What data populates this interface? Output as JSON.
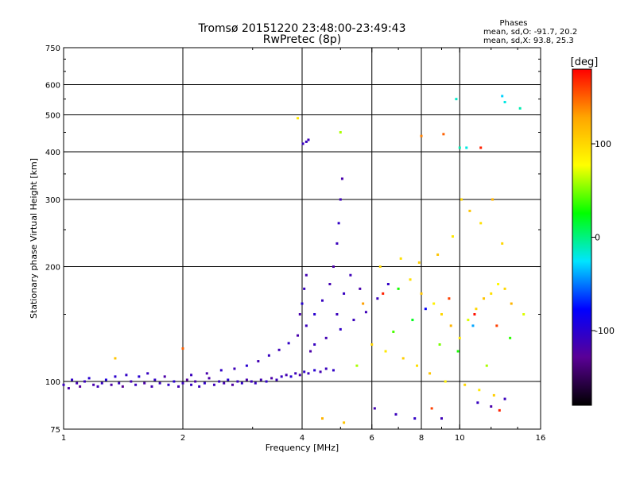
{
  "chart_data": {
    "type": "scatter",
    "title": "Tromsø 20151220 23:48:00-23:49:43",
    "subtitle": "RwPretec (8p)",
    "xlabel": "Frequency [MHz]",
    "ylabel": "Stationary phase Virtual Height [km]",
    "x_scale": "log",
    "y_scale": "log",
    "xlim": [
      1,
      16
    ],
    "ylim": [
      75,
      750
    ],
    "x_ticks": [
      1,
      2,
      4,
      6,
      8,
      10,
      16
    ],
    "y_ticks": [
      75,
      100,
      200,
      300,
      400,
      500,
      600,
      750
    ],
    "x_minor_ticks": [
      3,
      5,
      7,
      9,
      12,
      14
    ],
    "y_minor_ticks": [
      150,
      250,
      350,
      450,
      550,
      650,
      700
    ],
    "grid": true,
    "legend": {
      "title": "Phases",
      "lines": [
        "mean, sd,O: -91.7, 20.2",
        "mean, sd,X:  93.8, 25.3"
      ]
    },
    "colorbar": {
      "label": "[deg]",
      "range": [
        -180,
        180
      ],
      "ticks": [
        100,
        0,
        -100
      ],
      "colormap": [
        "#000000",
        "#5a0096",
        "#0000ff",
        "#00e5ff",
        "#00ff00",
        "#ffff00",
        "#ffa500",
        "#ff0000"
      ]
    },
    "series": [
      {
        "points": [
          [
            1.0,
            98,
            -110
          ],
          [
            1.03,
            96,
            -120
          ],
          [
            1.05,
            101,
            -105
          ],
          [
            1.08,
            99,
            -115
          ],
          [
            1.1,
            97,
            -125
          ],
          [
            1.13,
            100,
            -110
          ],
          [
            1.16,
            102,
            -100
          ],
          [
            1.19,
            98,
            -118
          ],
          [
            1.22,
            97,
            -112
          ],
          [
            1.25,
            99,
            -108
          ],
          [
            1.28,
            101,
            -95
          ],
          [
            1.32,
            98,
            -120
          ],
          [
            1.35,
            103,
            -102
          ],
          [
            1.38,
            99,
            -110
          ],
          [
            1.41,
            97,
            -130
          ],
          [
            1.44,
            104,
            -105
          ],
          [
            1.48,
            100,
            -115
          ],
          [
            1.52,
            98,
            -110
          ],
          [
            1.55,
            103,
            -100
          ],
          [
            1.6,
            99,
            -120
          ],
          [
            1.63,
            105,
            -108
          ],
          [
            1.67,
            97,
            -115
          ],
          [
            1.7,
            101,
            -105
          ],
          [
            1.75,
            99,
            -110
          ],
          [
            1.8,
            103,
            -120
          ],
          [
            1.84,
            98,
            -105
          ],
          [
            1.9,
            100,
            -100
          ],
          [
            1.95,
            97,
            -115
          ],
          [
            2.0,
            99,
            -110
          ],
          [
            2.05,
            101,
            -125
          ],
          [
            2.1,
            98,
            -108
          ],
          [
            2.15,
            100,
            -118
          ],
          [
            2.2,
            97,
            -110
          ],
          [
            2.27,
            99,
            -105
          ],
          [
            2.33,
            102,
            -120
          ],
          [
            2.4,
            98,
            -112
          ],
          [
            2.47,
            100,
            -108
          ],
          [
            2.54,
            99,
            -115
          ],
          [
            2.6,
            101,
            -100
          ],
          [
            2.67,
            98,
            -122
          ],
          [
            2.75,
            100,
            -110
          ],
          [
            2.82,
            99,
            -105
          ],
          [
            2.9,
            101,
            -118
          ],
          [
            2.98,
            100,
            -112
          ],
          [
            3.05,
            99,
            -108
          ],
          [
            3.15,
            101,
            -115
          ],
          [
            3.25,
            100,
            -104
          ],
          [
            3.35,
            102,
            -120
          ],
          [
            3.45,
            101,
            -110
          ],
          [
            3.55,
            103,
            -108
          ],
          [
            3.65,
            104,
            -115
          ],
          [
            3.75,
            103,
            -100
          ],
          [
            3.85,
            105,
            -112
          ],
          [
            3.95,
            104,
            -118
          ],
          [
            4.05,
            106,
            -105
          ],
          [
            4.15,
            105,
            -110
          ],
          [
            4.3,
            107,
            -100
          ],
          [
            4.45,
            106,
            -115
          ],
          [
            4.6,
            108,
            -110
          ],
          [
            4.8,
            107,
            -105
          ],
          [
            2.1,
            104,
            -110
          ],
          [
            2.3,
            105,
            -118
          ],
          [
            2.5,
            107,
            -105
          ],
          [
            2.7,
            108,
            -112
          ],
          [
            2.9,
            110,
            -100
          ],
          [
            3.1,
            113,
            -115
          ],
          [
            3.3,
            117,
            -108
          ],
          [
            3.5,
            121,
            -112
          ],
          [
            3.7,
            126,
            -105
          ],
          [
            3.9,
            132,
            -118
          ],
          [
            4.1,
            140,
            -110
          ],
          [
            4.3,
            150,
            -100
          ],
          [
            4.5,
            163,
            -108
          ],
          [
            4.7,
            180,
            -115
          ],
          [
            4.8,
            200,
            -120
          ],
          [
            4.9,
            230,
            -110
          ],
          [
            4.95,
            260,
            -105
          ],
          [
            5.0,
            300,
            -112
          ],
          [
            5.05,
            340,
            -118
          ],
          [
            4.3,
            125,
            -108
          ],
          [
            4.6,
            130,
            -115
          ],
          [
            5.0,
            137,
            -105
          ],
          [
            5.4,
            145,
            -110
          ],
          [
            5.8,
            152,
            -112
          ],
          [
            4.2,
            120,
            -120
          ],
          [
            4.0,
            160,
            -100
          ],
          [
            4.05,
            175,
            -108
          ],
          [
            4.1,
            190,
            -115
          ],
          [
            3.95,
            150,
            -118
          ],
          [
            4.02,
            420,
            -110
          ],
          [
            4.1,
            425,
            -108
          ],
          [
            4.15,
            430,
            -112
          ],
          [
            4.9,
            150,
            -110
          ],
          [
            5.1,
            170,
            -108
          ],
          [
            5.3,
            190,
            -112
          ],
          [
            5.6,
            175,
            -118
          ],
          [
            6.2,
            165,
            -110
          ],
          [
            6.6,
            180,
            -105
          ],
          [
            7.0,
            175,
            30
          ],
          [
            7.5,
            185,
            95
          ],
          [
            8.0,
            170,
            110
          ],
          [
            8.6,
            160,
            85
          ],
          [
            9.0,
            150,
            100
          ],
          [
            9.5,
            140,
            120
          ],
          [
            10.0,
            130,
            90
          ],
          [
            10.5,
            145,
            70
          ],
          [
            11.0,
            155,
            100
          ],
          [
            11.5,
            165,
            110
          ],
          [
            12.0,
            170,
            95
          ],
          [
            12.5,
            180,
            80
          ],
          [
            13.0,
            175,
            100
          ],
          [
            13.5,
            160,
            120
          ],
          [
            6.0,
            125,
            100
          ],
          [
            6.5,
            120,
            90
          ],
          [
            7.2,
            115,
            105
          ],
          [
            7.8,
            110,
            95
          ],
          [
            8.4,
            105,
            110
          ],
          [
            9.2,
            100,
            85
          ],
          [
            10.3,
            98,
            100
          ],
          [
            11.2,
            95,
            90
          ],
          [
            12.2,
            92,
            105
          ],
          [
            6.3,
            200,
            100
          ],
          [
            7.1,
            210,
            95
          ],
          [
            7.9,
            205,
            105
          ],
          [
            8.8,
            215,
            110
          ],
          [
            9.6,
            240,
            90
          ],
          [
            10.1,
            300,
            100
          ],
          [
            10.6,
            280,
            110
          ],
          [
            11.3,
            260,
            95
          ],
          [
            12.1,
            300,
            120
          ],
          [
            12.8,
            230,
            100
          ],
          [
            8.0,
            440,
            140
          ],
          [
            9.1,
            445,
            150
          ],
          [
            10.0,
            410,
            -10
          ],
          [
            10.4,
            410,
            -20
          ],
          [
            11.3,
            410,
            170
          ],
          [
            12.8,
            560,
            -30
          ],
          [
            13.0,
            540,
            -20
          ],
          [
            14.2,
            520,
            -10
          ],
          [
            9.8,
            550,
            -15
          ],
          [
            5.0,
            450,
            60
          ],
          [
            3.9,
            490,
            90
          ],
          [
            6.1,
            85,
            -115
          ],
          [
            6.9,
            82,
            -110
          ],
          [
            7.7,
            80,
            -105
          ],
          [
            8.5,
            85,
            160
          ],
          [
            9.0,
            80,
            -112
          ],
          [
            11.1,
            88,
            -108
          ],
          [
            12.0,
            86,
            -118
          ],
          [
            12.6,
            84,
            170
          ],
          [
            13.0,
            90,
            -110
          ],
          [
            4.5,
            80,
            120
          ],
          [
            5.1,
            78,
            110
          ],
          [
            1.35,
            115,
            110
          ],
          [
            2.0,
            122,
            150
          ],
          [
            5.5,
            110,
            60
          ],
          [
            6.8,
            135,
            40
          ],
          [
            7.6,
            145,
            20
          ],
          [
            8.9,
            125,
            50
          ],
          [
            9.9,
            120,
            30
          ],
          [
            10.8,
            140,
            -40
          ],
          [
            11.7,
            110,
            60
          ],
          [
            13.4,
            130,
            35
          ],
          [
            14.5,
            150,
            70
          ],
          [
            8.2,
            155,
            -80
          ],
          [
            6.4,
            170,
            170
          ],
          [
            9.4,
            165,
            160
          ],
          [
            10.9,
            150,
            175
          ],
          [
            12.4,
            140,
            160
          ],
          [
            5.7,
            160,
            130
          ]
        ]
      }
    ]
  }
}
